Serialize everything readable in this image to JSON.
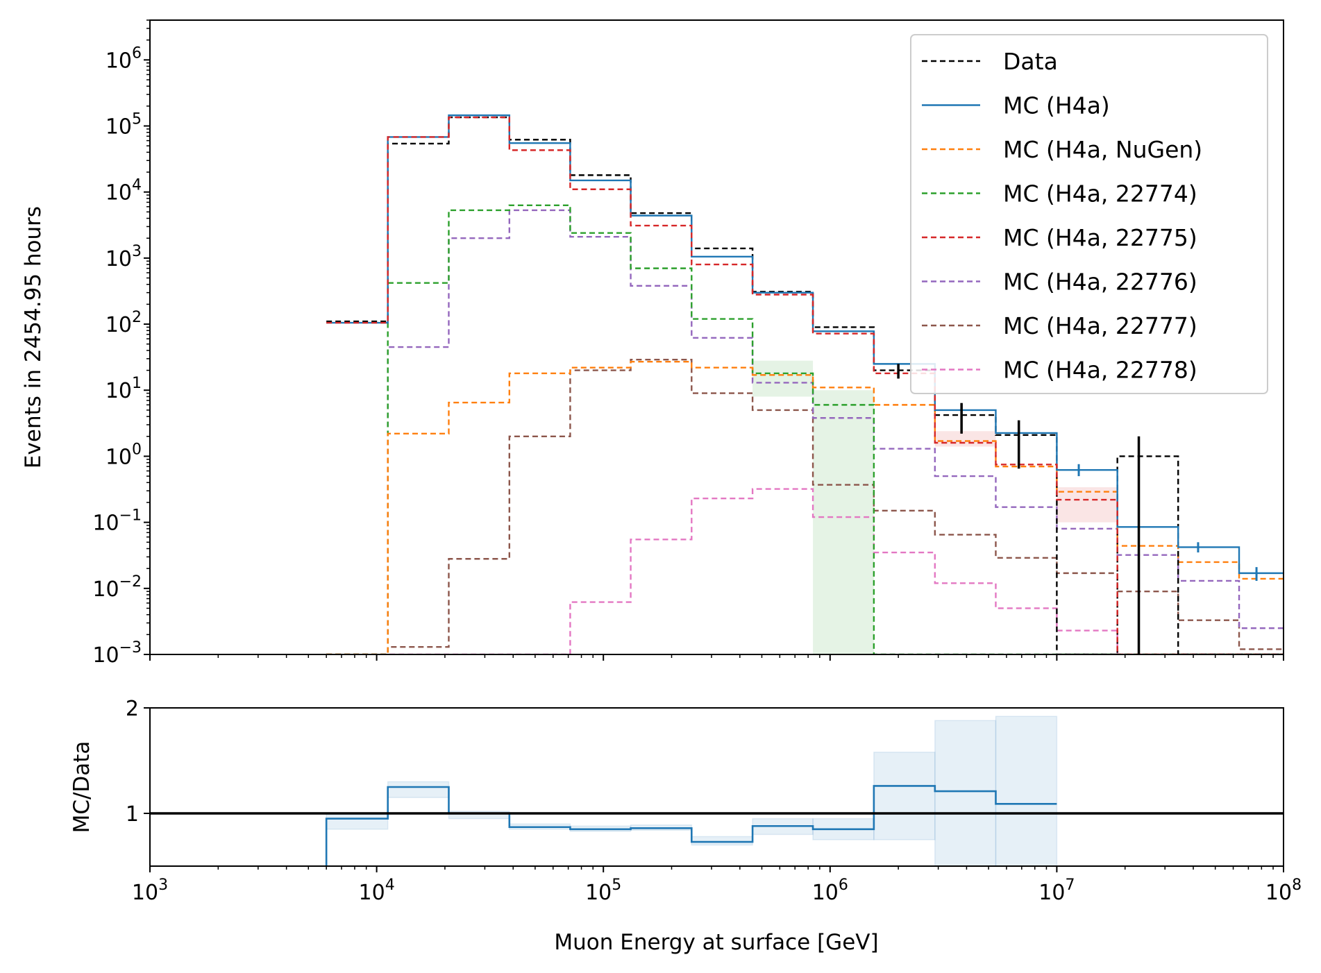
{
  "chart_data": [
    {
      "type": "line",
      "title": "",
      "xlabel": "",
      "ylabel": "Events in 2454.95 hours",
      "xscale": "log",
      "yscale": "log",
      "xlim": [
        1000,
        100000000
      ],
      "ylim": [
        0.001,
        4000000
      ],
      "xticks": [
        {
          "base": "10",
          "exp": "3"
        },
        {
          "base": "10",
          "exp": "4"
        },
        {
          "base": "10",
          "exp": "5"
        },
        {
          "base": "10",
          "exp": "6"
        },
        {
          "base": "10",
          "exp": "7"
        },
        {
          "base": "10",
          "exp": "8"
        }
      ],
      "yticks": [
        {
          "base": "10",
          "exp": "−3"
        },
        {
          "base": "10",
          "exp": "−2"
        },
        {
          "base": "10",
          "exp": "−1"
        },
        {
          "base": "10",
          "exp": "0"
        },
        {
          "base": "10",
          "exp": "1"
        },
        {
          "base": "10",
          "exp": "2"
        },
        {
          "base": "10",
          "exp": "3"
        },
        {
          "base": "10",
          "exp": "4"
        },
        {
          "base": "10",
          "exp": "5"
        },
        {
          "base": "10",
          "exp": "6"
        }
      ],
      "legend_position": "top-right",
      "bin_edges": [
        6000,
        11200,
        20800,
        38500,
        71400,
        132000,
        245000,
        455000,
        840000,
        1560000,
        2900000,
        5380000,
        10000000,
        18500000,
        34300000,
        63700000,
        100000000
      ],
      "series": [
        {
          "name": "Data",
          "color": "#000000",
          "style": "dashed",
          "values": [
            110,
            54000,
            135000,
            62000,
            18000,
            4800,
            1400,
            310,
            90,
            20,
            4.2,
            2.1,
            0.001,
            1.0,
            0.001,
            0.001
          ]
        },
        {
          "name": "MC (H4a)",
          "color": "#1f77b4",
          "style": "solid",
          "values": [
            105,
            68000,
            145000,
            55000,
            15000,
            4400,
            1050,
            300,
            78,
            25,
            5.0,
            2.25,
            0.62,
            0.085,
            0.042,
            0.017
          ]
        },
        {
          "name": "MC (H4a, NuGen)",
          "color": "#ff7f0e",
          "style": "dashed",
          "values": [
            0.001,
            2.2,
            6.5,
            18,
            22,
            27,
            22,
            17,
            11,
            6,
            1.7,
            0.7,
            0.29,
            0.044,
            0.025,
            0.014
          ]
        },
        {
          "name": "MC (H4a, 22774)",
          "color": "#2ca02c",
          "style": "dashed",
          "values": [
            0.001,
            420,
            5300,
            6300,
            2400,
            700,
            120,
            18,
            6,
            0.001,
            0.001,
            0.001,
            0.001,
            0.001,
            0.001,
            0.001
          ]
        },
        {
          "name": "MC (H4a, 22775)",
          "color": "#d62728",
          "style": "dashed",
          "values": [
            105,
            68000,
            135000,
            43000,
            11000,
            3100,
            800,
            280,
            72,
            18,
            1.6,
            0.75,
            0.22,
            0.001,
            0.001,
            0.001
          ]
        },
        {
          "name": "MC (H4a, 22776)",
          "color": "#9467bd",
          "style": "dashed",
          "values": [
            0.001,
            45,
            2000,
            5300,
            2100,
            380,
            62,
            13,
            3.8,
            1.3,
            0.5,
            0.17,
            0.08,
            0.032,
            0.013,
            0.0025
          ]
        },
        {
          "name": "MC (H4a, 22777)",
          "color": "#8c564b",
          "style": "dashed",
          "values": [
            0.001,
            0.0013,
            0.028,
            2.0,
            20,
            29,
            9,
            5,
            0.37,
            0.15,
            0.065,
            0.029,
            0.017,
            0.009,
            0.0033,
            0.0012
          ]
        },
        {
          "name": "MC (H4a, 22778)",
          "color": "#e377c2",
          "style": "dashed",
          "values": [
            0.001,
            0.001,
            0.001,
            0.001,
            0.0062,
            0.055,
            0.23,
            0.32,
            0.12,
            0.035,
            0.012,
            0.005,
            0.0023,
            0.001,
            0.001,
            0.001
          ]
        }
      ],
      "uncertainty_bands": [
        {
          "series": "MC (H4a, 22774)",
          "bins": [
            8
          ],
          "low": [
            0.001
          ],
          "high": [
            10
          ]
        },
        {
          "series": "MC (H4a, 22774)",
          "bins": [
            7
          ],
          "low": [
            8
          ],
          "high": [
            28
          ]
        },
        {
          "series": "MC (H4a, 22775)",
          "bins": [
            10,
            12
          ],
          "low": [
            1.4,
            0.1
          ],
          "high": [
            2.4,
            0.34
          ]
        }
      ],
      "data_error_bars": [
        {
          "x": 2000000,
          "y": 20,
          "low": 15,
          "high": 25
        },
        {
          "x": 3800000,
          "y": 4.2,
          "low": 2.2,
          "high": 6.4
        },
        {
          "x": 6800000,
          "y": 2.0,
          "low": 0.65,
          "high": 3.5
        },
        {
          "x": 23000000,
          "y": 1.0,
          "low": 0.001,
          "high": 2.0
        }
      ],
      "mc_error_bars": [
        {
          "x": 3800000,
          "y": 5.0,
          "low": 4.0,
          "high": 6.0
        },
        {
          "x": 6800000,
          "y": 2.25,
          "low": 1.7,
          "high": 2.8
        },
        {
          "x": 12500000,
          "y": 0.62,
          "low": 0.5,
          "high": 0.76
        },
        {
          "x": 42000000,
          "y": 0.042,
          "low": 0.035,
          "high": 0.05
        },
        {
          "x": 76000000,
          "y": 0.017,
          "low": 0.013,
          "high": 0.021
        }
      ]
    },
    {
      "type": "line",
      "title": "",
      "xlabel": "Muon Energy at surface [GeV]",
      "ylabel": "MC/Data",
      "xscale": "log",
      "yscale": "linear",
      "xlim": [
        1000,
        100000000
      ],
      "ylim": [
        0.5,
        2.0
      ],
      "xticks": [
        {
          "base": "10",
          "exp": "3"
        },
        {
          "base": "10",
          "exp": "4"
        },
        {
          "base": "10",
          "exp": "5"
        },
        {
          "base": "10",
          "exp": "6"
        },
        {
          "base": "10",
          "exp": "7"
        },
        {
          "base": "10",
          "exp": "8"
        }
      ],
      "yticks": [
        "1",
        "2"
      ],
      "reference_line": 1.0,
      "bin_edges": [
        6000,
        11200,
        20800,
        38500,
        71400,
        132000,
        245000,
        455000,
        840000,
        1560000,
        2900000,
        5380000,
        10000000
      ],
      "series": [
        {
          "name": "",
          "color": "#1f77b4",
          "style": "solid",
          "values": [
            0.95,
            1.25,
            1.0,
            0.87,
            0.85,
            0.86,
            0.73,
            0.88,
            0.85,
            1.26,
            1.21,
            1.09
          ]
        }
      ],
      "band": {
        "low": [
          0.85,
          1.15,
          0.95,
          0.85,
          0.83,
          0.84,
          0.7,
          0.8,
          0.75,
          0.75,
          0.5,
          0.45
        ],
        "high": [
          1.0,
          1.3,
          1.02,
          0.9,
          0.88,
          0.89,
          0.78,
          0.95,
          0.95,
          1.58,
          1.88,
          1.92
        ]
      }
    }
  ]
}
